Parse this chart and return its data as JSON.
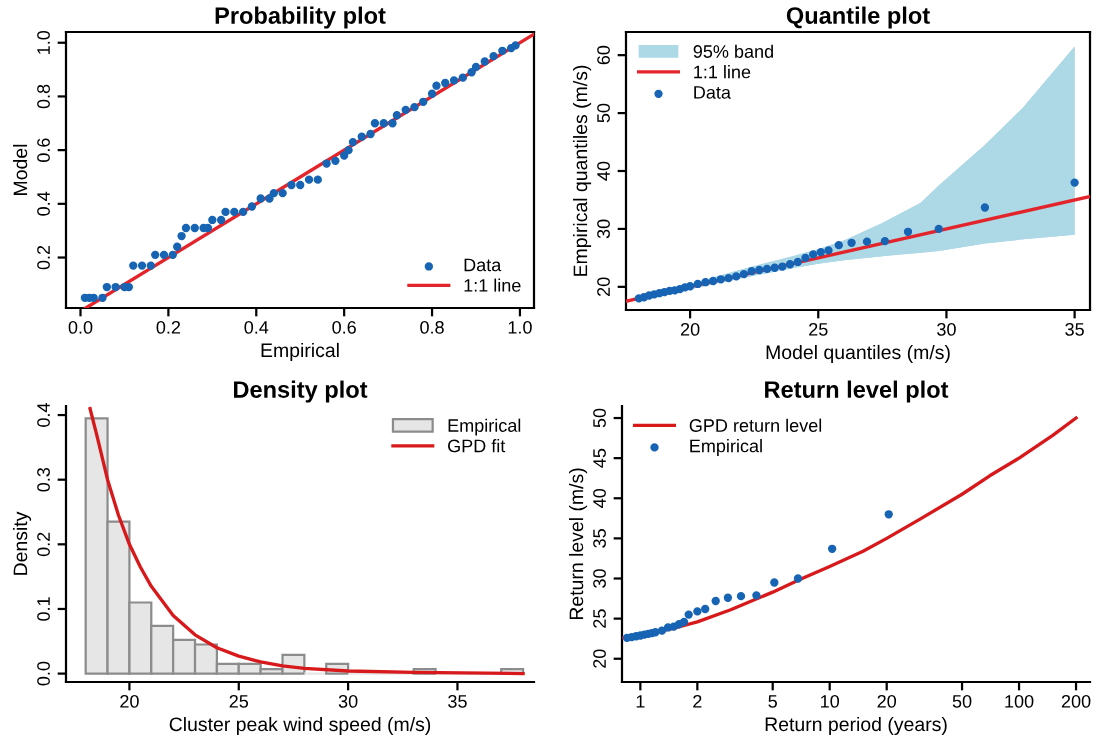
{
  "chart_data": [
    {
      "type": "scatter",
      "title": "Probability plot",
      "xlabel": "Empirical",
      "ylabel": "Model",
      "xlim": [
        -0.033,
        1.032
      ],
      "ylim": [
        0.012,
        1.04
      ],
      "xticks": [
        {
          "value": 0,
          "label": "0.0"
        },
        0.2,
        0.4,
        0.6,
        0.8,
        {
          "value": 1,
          "label": "1.0"
        }
      ],
      "yticks": [
        0.2,
        0.4,
        0.6,
        0.8,
        {
          "value": 1,
          "label": "1.0"
        }
      ],
      "legend": "bottom right",
      "grid": false,
      "series": [
        {
          "name": "Data",
          "type": "scatter",
          "marker": "circle",
          "color": "#1764b4",
          "x": [
            0.01,
            0.02,
            0.03,
            0.05,
            0.06,
            0.08,
            0.1,
            0.11,
            0.12,
            0.14,
            0.16,
            0.17,
            0.19,
            0.21,
            0.22,
            0.23,
            0.24,
            0.26,
            0.28,
            0.29,
            0.3,
            0.32,
            0.33,
            0.35,
            0.37,
            0.39,
            0.41,
            0.43,
            0.44,
            0.46,
            0.48,
            0.5,
            0.52,
            0.54,
            0.56,
            0.58,
            0.6,
            0.61,
            0.62,
            0.64,
            0.66,
            0.67,
            0.69,
            0.71,
            0.72,
            0.74,
            0.76,
            0.78,
            0.8,
            0.81,
            0.83,
            0.85,
            0.87,
            0.89,
            0.9,
            0.92,
            0.94,
            0.96,
            0.98,
            0.99
          ],
          "values": [
            0.05,
            0.05,
            0.05,
            0.05,
            0.09,
            0.09,
            0.09,
            0.09,
            0.17,
            0.17,
            0.17,
            0.21,
            0.21,
            0.21,
            0.24,
            0.28,
            0.31,
            0.31,
            0.31,
            0.31,
            0.34,
            0.34,
            0.37,
            0.37,
            0.37,
            0.39,
            0.42,
            0.42,
            0.44,
            0.44,
            0.47,
            0.47,
            0.49,
            0.49,
            0.55,
            0.56,
            0.58,
            0.6,
            0.63,
            0.65,
            0.66,
            0.7,
            0.7,
            0.7,
            0.73,
            0.75,
            0.76,
            0.78,
            0.81,
            0.84,
            0.85,
            0.86,
            0.87,
            0.89,
            0.91,
            0.93,
            0.95,
            0.97,
            0.98,
            0.99
          ]
        },
        {
          "name": "1:1 line",
          "type": "line",
          "color": "#e3242b",
          "x": [
            0.012,
            1.032
          ],
          "values": [
            0.012,
            1.032
          ]
        }
      ]
    },
    {
      "type": "scatter",
      "title": "Quantile plot",
      "xlabel": "Model quantiles (m/s)",
      "ylabel": "Empirical quantiles (m/s)",
      "xlim": [
        17.5,
        35.6
      ],
      "ylim": [
        16,
        64
      ],
      "xticks": [
        20,
        25,
        30,
        35
      ],
      "yticks": [
        20,
        30,
        40,
        50,
        60
      ],
      "legend": "top left",
      "grid": false,
      "series": [
        {
          "name": "95% band",
          "type": "area",
          "color": "#add8e6",
          "x": [
            18,
            20,
            22,
            24,
            25,
            26,
            27.5,
            29,
            29.7,
            31.5,
            33,
            35
          ],
          "values": [
            null,
            null,
            null,
            null,
            null,
            null,
            null,
            null,
            null,
            null,
            null,
            null
          ],
          "lower": [
            17.5,
            19.6,
            21.5,
            23.2,
            24,
            24.6,
            25.3,
            25.9,
            26.2,
            27.5,
            28.2,
            29
          ],
          "upper": [
            18.5,
            20.5,
            23,
            25.3,
            26.5,
            28,
            31,
            34.5,
            37.5,
            44.5,
            51,
            61.5
          ]
        },
        {
          "name": "1:1 line",
          "type": "line",
          "color": "#e3242b",
          "x": [
            17.5,
            35.6
          ],
          "values": [
            17.5,
            35.6
          ]
        },
        {
          "name": "Data",
          "type": "scatter",
          "marker": "circle",
          "color": "#1764b4",
          "x": [
            18.0,
            18.2,
            18.4,
            18.6,
            18.8,
            19.0,
            19.2,
            19.4,
            19.6,
            19.8,
            20.0,
            20.3,
            20.6,
            20.9,
            21.2,
            21.5,
            21.8,
            22.1,
            22.4,
            22.7,
            23.0,
            23.3,
            23.6,
            23.9,
            24.2,
            24.5,
            24.8,
            25.1,
            25.4,
            25.8,
            26.3,
            26.9,
            27.6,
            28.5,
            29.7,
            31.5,
            35.0
          ],
          "values": [
            18.0,
            18.2,
            18.5,
            18.7,
            18.9,
            19.1,
            19.3,
            19.4,
            19.6,
            19.9,
            20.1,
            20.5,
            20.8,
            21.0,
            21.3,
            21.5,
            21.8,
            22.2,
            22.7,
            22.9,
            23.1,
            23.3,
            23.5,
            23.9,
            24.3,
            25.0,
            25.6,
            26.0,
            26.3,
            27.2,
            27.6,
            27.8,
            27.9,
            29.5,
            30.0,
            33.7,
            38.0
          ]
        }
      ]
    },
    {
      "type": "histogram",
      "title": "Density plot",
      "xlabel": "Cluster peak wind speed (m/s)",
      "ylabel": "Density",
      "xlim": [
        17.1,
        38.5
      ],
      "ylim": [
        -0.013,
        0.414
      ],
      "xticks": [
        20,
        25,
        30,
        35
      ],
      "yticks": [
        {
          "value": 0,
          "label": "0.0"
        },
        0.1,
        0.2,
        0.3,
        0.4
      ],
      "legend": "top right",
      "grid": false,
      "series": [
        {
          "name": "Empirical",
          "type": "histogram",
          "color": "#e6e6e6",
          "bins": [
            18,
            19,
            20,
            21,
            22,
            23,
            24,
            25,
            26,
            27,
            28,
            29,
            30,
            31,
            32,
            33,
            34,
            35,
            36,
            37,
            38
          ],
          "values": [
            0.395,
            0.235,
            0.11,
            0.074,
            0.052,
            0.045,
            0.015,
            0.015,
            0.007,
            0.029,
            0,
            0.015,
            0,
            0,
            0,
            0.007,
            0,
            0,
            0,
            0.007
          ]
        },
        {
          "name": "GPD fit",
          "type": "line",
          "color": "#d7191c",
          "x": [
            18.2,
            18.5,
            19,
            19.5,
            20,
            20.5,
            21,
            22,
            23,
            24,
            25,
            26,
            27,
            28,
            30,
            33,
            38
          ],
          "values": [
            0.41,
            0.37,
            0.3,
            0.245,
            0.2,
            0.165,
            0.135,
            0.09,
            0.06,
            0.04,
            0.027,
            0.018,
            0.012,
            0.008,
            0.004,
            0.002,
            0
          ]
        }
      ]
    },
    {
      "type": "line",
      "title": "Return level plot",
      "xlabel": "Return period (years)",
      "ylabel": "Return level (m/s)",
      "log": "x",
      "xlim": [
        0.8,
        237
      ],
      "ylim": [
        17.1,
        51.5
      ],
      "xticks": [
        1,
        2,
        5,
        10,
        20,
        50,
        100,
        200
      ],
      "yticks": [
        20,
        25,
        30,
        35,
        40,
        45,
        50
      ],
      "legend": "top left",
      "grid": false,
      "series": [
        {
          "name": "GPD return level",
          "type": "line",
          "color": "#d7191c",
          "x": [
            0.8,
            1,
            1.5,
            2,
            3,
            5,
            7,
            10,
            15,
            20,
            30,
            50,
            70,
            100,
            150,
            200
          ],
          "values": [
            22.6,
            23,
            23.8,
            24.6,
            26.1,
            28.3,
            29.9,
            31.5,
            33.4,
            35,
            37.4,
            40.5,
            42.8,
            45,
            47.8,
            50
          ]
        },
        {
          "name": "Empirical",
          "type": "scatter",
          "marker": "circle",
          "color": "#1764b4",
          "x": [
            0.85,
            0.9,
            0.95,
            1.0,
            1.05,
            1.1,
            1.15,
            1.2,
            1.3,
            1.4,
            1.5,
            1.6,
            1.7,
            1.8,
            2.0,
            2.2,
            2.5,
            2.9,
            3.4,
            4.1,
            5.1,
            6.8,
            10.3,
            20.5
          ],
          "values": [
            22.6,
            22.7,
            22.8,
            22.9,
            23.0,
            23.1,
            23.2,
            23.3,
            23.5,
            23.9,
            24.0,
            24.3,
            24.6,
            25.5,
            25.9,
            26.2,
            27.2,
            27.6,
            27.8,
            27.9,
            29.5,
            30.0,
            33.7,
            38.0
          ]
        }
      ]
    }
  ]
}
